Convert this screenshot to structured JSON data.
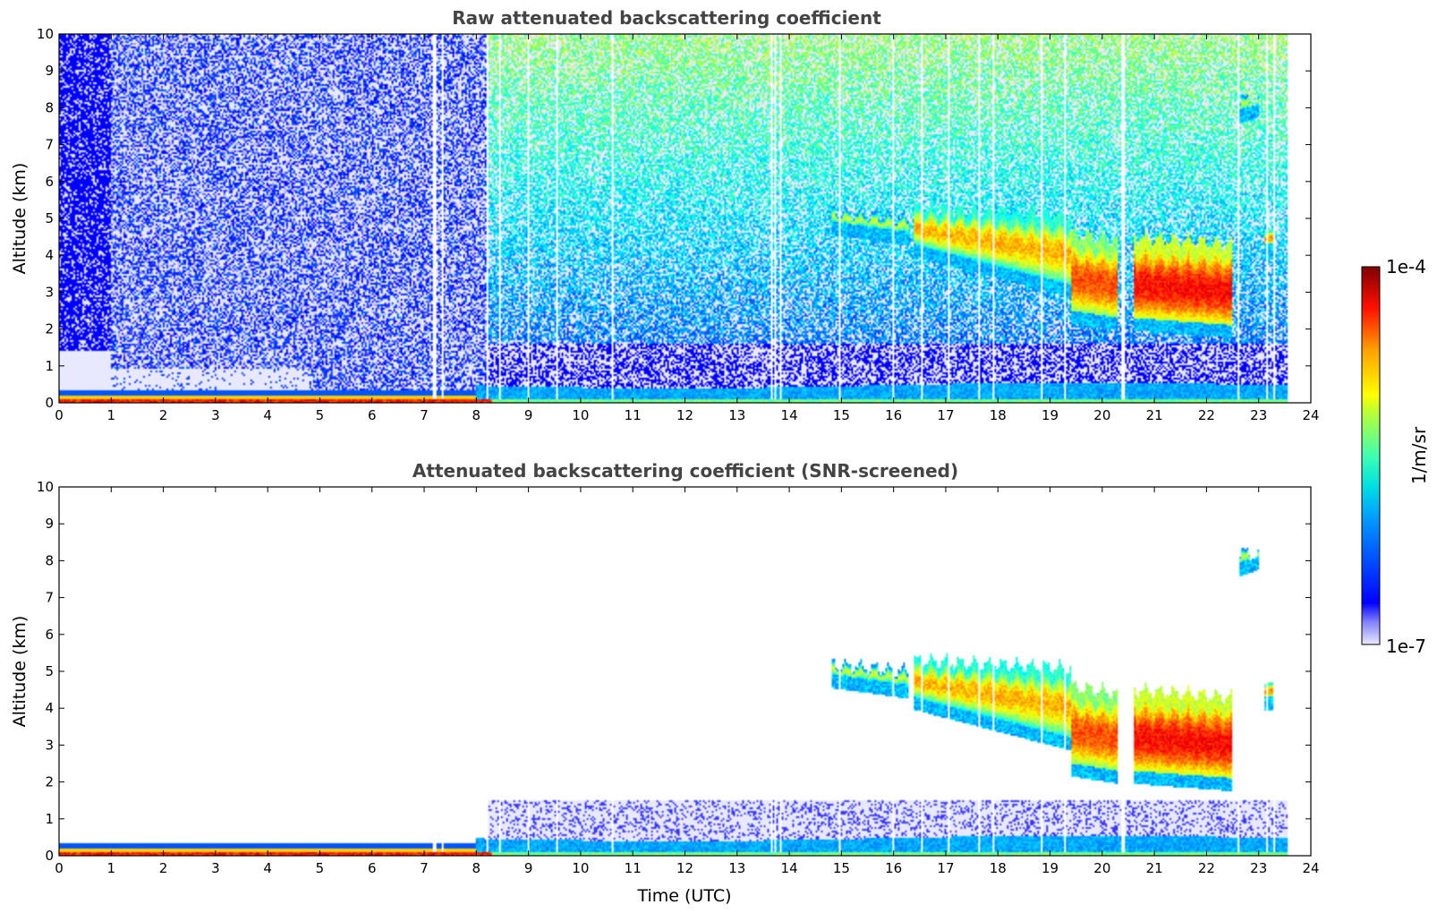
{
  "chart_data": [
    {
      "type": "heatmap",
      "title": "Raw attenuated backscattering coefficient",
      "xlabel": "",
      "ylabel": "Altitude (km)",
      "xlim": [
        0,
        24
      ],
      "ylim": [
        0,
        10
      ],
      "xticks": [
        "0",
        "1",
        "2",
        "3",
        "4",
        "5",
        "6",
        "7",
        "8",
        "9",
        "10",
        "11",
        "12",
        "13",
        "14",
        "15",
        "16",
        "17",
        "18",
        "19",
        "20",
        "21",
        "22",
        "23",
        "24"
      ],
      "yticks": [
        "0",
        "1",
        "2",
        "3",
        "4",
        "5",
        "6",
        "7",
        "8",
        "9",
        "10"
      ],
      "data_end_hour": 23.55,
      "gap_lines_hours": [
        7.2,
        7.35,
        8.2,
        8.45,
        9.0,
        9.55,
        10.6,
        13.65,
        13.72,
        13.85,
        14.95,
        16.0,
        16.55,
        17.05,
        17.65,
        17.9,
        18.85,
        19.3,
        20.4,
        22.6,
        23.15,
        23.3
      ],
      "cloud_layers": [
        {
          "t_start": 16.4,
          "t_end": 19.4,
          "base_km_start": 4.3,
          "base_km_end": 3.2,
          "top_km": 5.3,
          "peak_log": -4.9
        },
        {
          "t_start": 19.4,
          "t_end": 20.3,
          "base_km_start": 2.5,
          "base_km_end": 2.3,
          "top_km": 4.6,
          "peak_log": -4.6
        },
        {
          "t_start": 20.6,
          "t_end": 22.5,
          "base_km_start": 2.3,
          "base_km_end": 2.1,
          "top_km": 4.5,
          "peak_log": -4.4
        },
        {
          "t_start": 14.8,
          "t_end": 16.3,
          "base_km_start": 4.9,
          "base_km_end": 4.6,
          "top_km": 5.2,
          "peak_log": -5.3
        },
        {
          "t_start": 23.1,
          "t_end": 23.3,
          "base_km_start": 4.3,
          "base_km_end": 4.3,
          "top_km": 4.8,
          "peak_log": -4.8
        },
        {
          "t_start": 22.6,
          "t_end": 23.0,
          "base_km_start": 7.9,
          "base_km_end": 8.1,
          "top_km": 8.3,
          "peak_log": -5.3
        }
      ]
    },
    {
      "type": "heatmap",
      "title": "Attenuated backscattering coefficient (SNR-screened)",
      "xlabel": "Time (UTC)",
      "ylabel": "Altitude (km)",
      "xlim": [
        0,
        24
      ],
      "ylim": [
        0,
        10
      ],
      "xticks": [
        "0",
        "1",
        "2",
        "3",
        "4",
        "5",
        "6",
        "7",
        "8",
        "9",
        "10",
        "11",
        "12",
        "13",
        "14",
        "15",
        "16",
        "17",
        "18",
        "19",
        "20",
        "21",
        "22",
        "23",
        "24"
      ],
      "yticks": [
        "0",
        "1",
        "2",
        "3",
        "4",
        "5",
        "6",
        "7",
        "8",
        "9",
        "10"
      ],
      "data_end_hour": 23.55,
      "boundary_layer_top_km": 1.5
    }
  ],
  "colorbar": {
    "label": "1/m/sr",
    "max_label": "1e-4",
    "min_label": "1e-7",
    "vmin_log10": -7,
    "vmax_log10": -4,
    "colormap": "jet",
    "low_color": "#e8e8ff"
  }
}
